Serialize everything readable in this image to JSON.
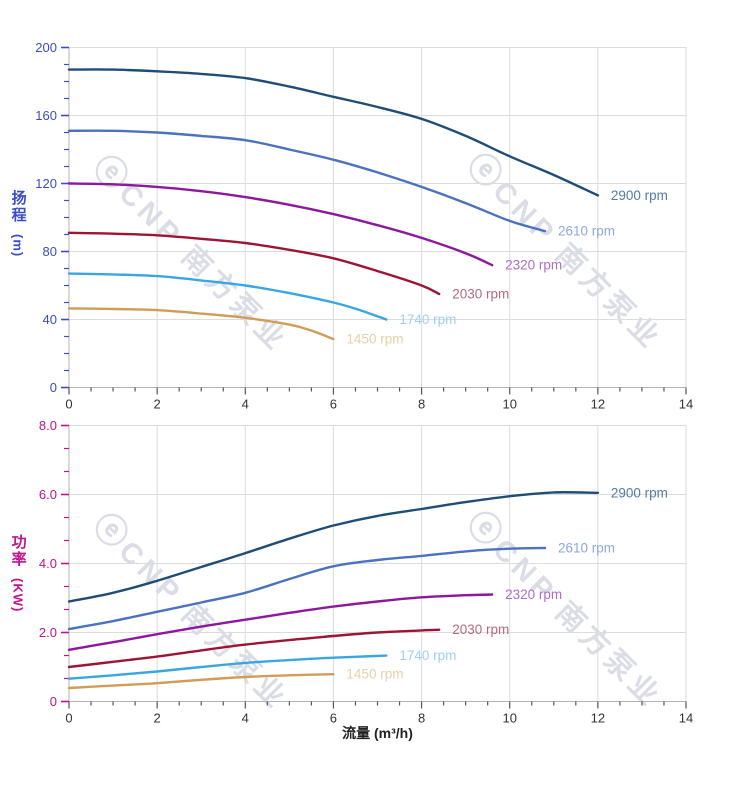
{
  "watermark": {
    "logo_glyph": "ⓔ",
    "text": "CNP 南方泵业"
  },
  "chart_data": [
    {
      "type": "line",
      "title": "",
      "xlabel": "流量 (m³/h)",
      "ylabel": "扬程",
      "ylabel_unit": "(m)",
      "axis_color": "#3b4cc8",
      "x_axis_text_color": "#333333",
      "xlim": [
        0,
        14
      ],
      "ylim": [
        0,
        200
      ],
      "x_major": 2,
      "y_major": 40,
      "x_minor_div": 4,
      "y_minor_div": 4,
      "grid": true,
      "x_tick_labels": [
        "0",
        "2",
        "4",
        "6",
        "8",
        "10",
        "12",
        "14"
      ],
      "y_tick_labels": [
        "0",
        "40",
        "80",
        "120",
        "160",
        "200"
      ],
      "legend_position": "curve-end-right",
      "series": [
        {
          "name": "2900 rpm",
          "color": "#1d4d78",
          "label_color": "#527ca6",
          "points": [
            [
              0,
              187
            ],
            [
              1,
              187
            ],
            [
              2,
              186
            ],
            [
              3,
              184.5
            ],
            [
              4,
              182
            ],
            [
              5,
              177
            ],
            [
              6,
              171
            ],
            [
              7,
              165
            ],
            [
              8,
              158
            ],
            [
              9,
              148
            ],
            [
              10,
              136
            ],
            [
              11,
              125
            ],
            [
              12,
              113
            ]
          ]
        },
        {
          "name": "2610 rpm",
          "color": "#4a72c2",
          "label_color": "#8ea8da",
          "points": [
            [
              0,
              151
            ],
            [
              1,
              151
            ],
            [
              2,
              150
            ],
            [
              3,
              148
            ],
            [
              4,
              145.5
            ],
            [
              5,
              140
            ],
            [
              6,
              134
            ],
            [
              7,
              126.5
            ],
            [
              8,
              118
            ],
            [
              9,
              108.5
            ],
            [
              10,
              98
            ],
            [
              10.8,
              92
            ]
          ]
        },
        {
          "name": "2320 rpm",
          "color": "#8d189d",
          "label_color": "#b16cc4",
          "points": [
            [
              0,
              120
            ],
            [
              1,
              119.5
            ],
            [
              2,
              118
            ],
            [
              3,
              115.5
            ],
            [
              4,
              112
            ],
            [
              5,
              107.5
            ],
            [
              6,
              102
            ],
            [
              7,
              95.5
            ],
            [
              8,
              88
            ],
            [
              9,
              79
            ],
            [
              9.6,
              72
            ]
          ]
        },
        {
          "name": "2030 rpm",
          "color": "#9e1434",
          "label_color": "#b36a80",
          "points": [
            [
              0,
              91
            ],
            [
              1,
              90.5
            ],
            [
              2,
              89.5
            ],
            [
              3,
              87.5
            ],
            [
              4,
              85
            ],
            [
              5,
              81
            ],
            [
              6,
              76
            ],
            [
              7,
              68.5
            ],
            [
              8,
              60
            ],
            [
              8.4,
              55
            ]
          ]
        },
        {
          "name": "1740 rpm",
          "color": "#38a7e1",
          "label_color": "#9cd1f0",
          "points": [
            [
              0,
              67
            ],
            [
              1,
              66.5
            ],
            [
              2,
              65.5
            ],
            [
              3,
              63
            ],
            [
              4,
              60
            ],
            [
              5,
              55.5
            ],
            [
              6,
              50
            ],
            [
              6.6,
              45.5
            ],
            [
              7.2,
              40
            ]
          ]
        },
        {
          "name": "1450 rpm",
          "color": "#d19c58",
          "label_color": "#e7cfa8",
          "points": [
            [
              0,
              46.5
            ],
            [
              1,
              46.2
            ],
            [
              2,
              45.5
            ],
            [
              3,
              43.5
            ],
            [
              4,
              41
            ],
            [
              5,
              37
            ],
            [
              5.5,
              33.5
            ],
            [
              6,
              28.5
            ]
          ]
        }
      ]
    },
    {
      "type": "line",
      "title": "",
      "xlabel": "流量 (m³/h)",
      "ylabel": "功率",
      "ylabel_unit": "(KW)",
      "axis_color": "#c01390",
      "x_axis_text_color": "#333333",
      "xlim": [
        0,
        14
      ],
      "ylim": [
        0,
        8
      ],
      "x_major": 2,
      "y_major": 2,
      "x_minor_div": 4,
      "y_minor_div": 3,
      "grid": true,
      "x_tick_labels": [
        "0",
        "2",
        "4",
        "6",
        "8",
        "10",
        "12",
        "14"
      ],
      "y_tick_labels": [
        "0",
        "2.0",
        "4.0",
        "6.0",
        "8.0"
      ],
      "legend_position": "curve-end-right",
      "series": [
        {
          "name": "2900 rpm",
          "color": "#1d4d78",
          "label_color": "#527ca6",
          "points": [
            [
              0,
              2.9
            ],
            [
              1,
              3.15
            ],
            [
              2,
              3.5
            ],
            [
              3,
              3.9
            ],
            [
              4,
              4.3
            ],
            [
              5,
              4.72
            ],
            [
              6,
              5.1
            ],
            [
              7,
              5.38
            ],
            [
              8,
              5.58
            ],
            [
              9,
              5.78
            ],
            [
              10,
              5.95
            ],
            [
              11,
              6.06
            ],
            [
              12,
              6.05
            ]
          ]
        },
        {
          "name": "2610 rpm",
          "color": "#4a72c2",
          "label_color": "#8ea8da",
          "points": [
            [
              0,
              2.1
            ],
            [
              1,
              2.33
            ],
            [
              2,
              2.6
            ],
            [
              3,
              2.87
            ],
            [
              4,
              3.15
            ],
            [
              5,
              3.55
            ],
            [
              6,
              3.92
            ],
            [
              7,
              4.1
            ],
            [
              8,
              4.22
            ],
            [
              9,
              4.35
            ],
            [
              10,
              4.43
            ],
            [
              10.8,
              4.45
            ]
          ]
        },
        {
          "name": "2320 rpm",
          "color": "#8d189d",
          "label_color": "#b16cc4",
          "points": [
            [
              0,
              1.5
            ],
            [
              1,
              1.72
            ],
            [
              2,
              1.95
            ],
            [
              3,
              2.17
            ],
            [
              4,
              2.37
            ],
            [
              5,
              2.57
            ],
            [
              6,
              2.75
            ],
            [
              7,
              2.9
            ],
            [
              8,
              3.02
            ],
            [
              9,
              3.08
            ],
            [
              9.6,
              3.1
            ]
          ]
        },
        {
          "name": "2030 rpm",
          "color": "#9e1434",
          "label_color": "#b36a80",
          "points": [
            [
              0,
              1.0
            ],
            [
              1,
              1.15
            ],
            [
              2,
              1.3
            ],
            [
              3,
              1.48
            ],
            [
              4,
              1.65
            ],
            [
              5,
              1.78
            ],
            [
              6,
              1.9
            ],
            [
              7,
              2.0
            ],
            [
              8,
              2.06
            ],
            [
              8.4,
              2.08
            ]
          ]
        },
        {
          "name": "1740 rpm",
          "color": "#38a7e1",
          "label_color": "#9cd1f0",
          "points": [
            [
              0,
              0.66
            ],
            [
              1,
              0.76
            ],
            [
              2,
              0.87
            ],
            [
              3,
              1.0
            ],
            [
              4,
              1.12
            ],
            [
              5,
              1.2
            ],
            [
              6,
              1.27
            ],
            [
              7.2,
              1.33
            ]
          ]
        },
        {
          "name": "1450 rpm",
          "color": "#d19c58",
          "label_color": "#e7cfa8",
          "points": [
            [
              0,
              0.39
            ],
            [
              1,
              0.46
            ],
            [
              2,
              0.53
            ],
            [
              3,
              0.63
            ],
            [
              4,
              0.71
            ],
            [
              5,
              0.76
            ],
            [
              6,
              0.79
            ]
          ]
        }
      ]
    }
  ]
}
